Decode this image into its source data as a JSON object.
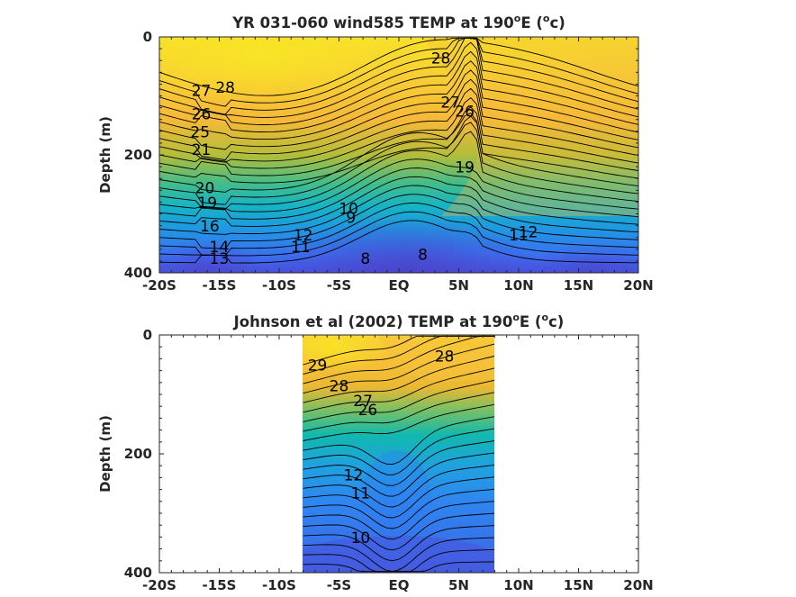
{
  "chart_data": [
    {
      "type": "heatmap",
      "title_main": "YR 031-060 wind585 TEMP at 190",
      "title_sup": "o",
      "title_mid": "E (",
      "title_sup2": "o",
      "title_end": "c)",
      "ylabel": "Depth (m)",
      "xlim": [
        -20,
        20
      ],
      "ylim": [
        0,
        400
      ],
      "y_reversed": true,
      "x_ticks": [
        "-20S",
        "-15S",
        "-10S",
        "-5S",
        "EQ",
        "5N",
        "10N",
        "15N",
        "20N"
      ],
      "y_ticks": [
        "0",
        "200",
        "400"
      ],
      "data_extent": [
        -20,
        20
      ],
      "contour_labels": [
        {
          "text": "28",
          "x": -14.5,
          "y": 95
        },
        {
          "text": "27",
          "x": -16.5,
          "y": 100
        },
        {
          "text": "26",
          "x": -16.5,
          "y": 140
        },
        {
          "text": "25",
          "x": -16.6,
          "y": 170
        },
        {
          "text": "21",
          "x": -16.5,
          "y": 200
        },
        {
          "text": "20",
          "x": -16.2,
          "y": 265
        },
        {
          "text": "19",
          "x": -16.0,
          "y": 290
        },
        {
          "text": "16",
          "x": -15.8,
          "y": 330
        },
        {
          "text": "14",
          "x": -15.0,
          "y": 365
        },
        {
          "text": "13",
          "x": -15.0,
          "y": 385
        },
        {
          "text": "12",
          "x": -8.0,
          "y": 345
        },
        {
          "text": "11",
          "x": -8.2,
          "y": 365
        },
        {
          "text": "10",
          "x": -4.2,
          "y": 300
        },
        {
          "text": "9",
          "x": -4.0,
          "y": 315
        },
        {
          "text": "8",
          "x": -2.8,
          "y": 385
        },
        {
          "text": "8",
          "x": 2.0,
          "y": 378
        },
        {
          "text": "28",
          "x": 3.5,
          "y": 45
        },
        {
          "text": "27",
          "x": 4.3,
          "y": 120
        },
        {
          "text": "26",
          "x": 5.5,
          "y": 135
        },
        {
          "text": "19",
          "x": 5.5,
          "y": 230
        },
        {
          "text": "12",
          "x": 10.8,
          "y": 340
        },
        {
          "text": "11",
          "x": 10.0,
          "y": 345
        }
      ]
    },
    {
      "type": "heatmap",
      "title_main": "Johnson et al (2002) TEMP at 190",
      "title_sup": "o",
      "title_mid": "E (",
      "title_sup2": "o",
      "title_end": "c)",
      "ylabel": "Depth (m)",
      "xlim": [
        -20,
        20
      ],
      "ylim": [
        0,
        400
      ],
      "y_reversed": true,
      "x_ticks": [
        "-20S",
        "-15S",
        "-10S",
        "-5S",
        "EQ",
        "5N",
        "10N",
        "15N",
        "20N"
      ],
      "y_ticks": [
        "0",
        "200",
        "400"
      ],
      "data_extent": [
        -8,
        8
      ],
      "contour_labels": [
        {
          "text": "29",
          "x": -6.8,
          "y": 60
        },
        {
          "text": "28",
          "x": -5.0,
          "y": 95
        },
        {
          "text": "28",
          "x": 3.8,
          "y": 45
        },
        {
          "text": "27",
          "x": -3.0,
          "y": 120
        },
        {
          "text": "26",
          "x": -2.6,
          "y": 135
        },
        {
          "text": "12",
          "x": -3.8,
          "y": 245
        },
        {
          "text": "11",
          "x": -3.2,
          "y": 275
        },
        {
          "text": "10",
          "x": -3.2,
          "y": 350
        }
      ]
    }
  ]
}
